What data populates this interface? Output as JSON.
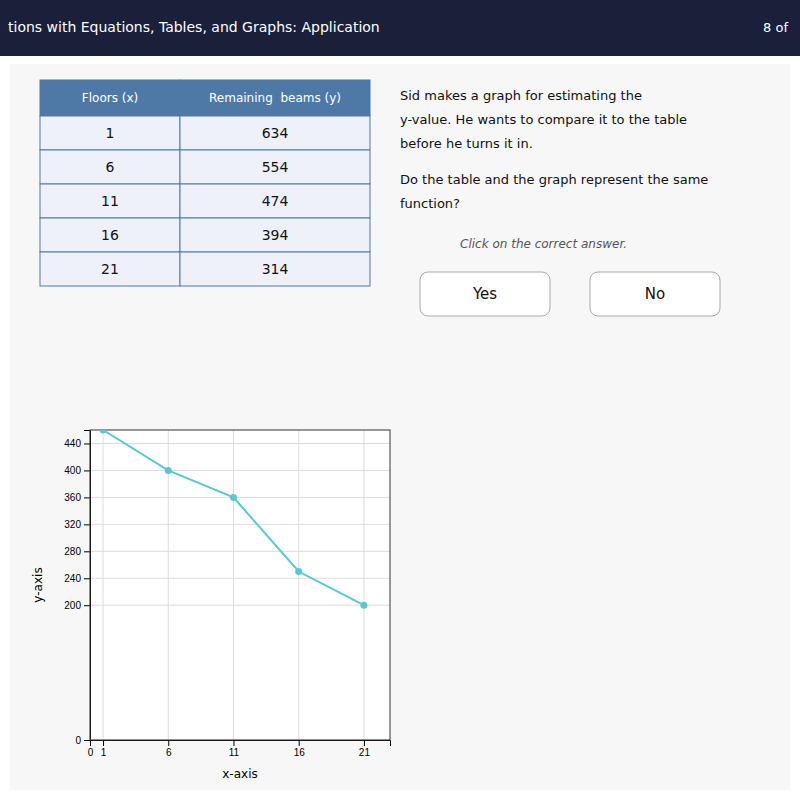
{
  "annotations": [
    "tions with Equations, Tables, and Graphs: Application",
    "8 of",
    "Sid makes a graph for estimating the",
    "y-value. He wants to compare it to the table",
    "before he turns it in.",
    "Do the table and the graph represent the same",
    "function?",
    "Click on the correct answer."
  ],
  "buttons": [
    "Yes",
    "No"
  ],
  "chart_data": [
    {
      "type": "table",
      "columns": [
        "Floors (x)",
        "Remaining  beams (y)"
      ],
      "rows": [
        [
          1,
          634
        ],
        [
          6,
          554
        ],
        [
          11,
          474
        ],
        [
          16,
          394
        ],
        [
          21,
          314
        ]
      ]
    },
    {
      "type": "line",
      "x": [
        1,
        6,
        11,
        16,
        21
      ],
      "values": [
        460,
        400,
        360,
        250,
        200
      ],
      "color": "#5bc8d0",
      "marker": "circle",
      "grid": true,
      "xlabel": "x-axis",
      "ylabel": "y-axis",
      "xlim": [
        0,
        23
      ],
      "ylim": [
        0,
        460
      ],
      "xticks": [
        0,
        1,
        6,
        11,
        16,
        21
      ],
      "yticks": [
        0,
        200,
        240,
        280,
        320,
        360,
        400,
        440
      ]
    }
  ]
}
